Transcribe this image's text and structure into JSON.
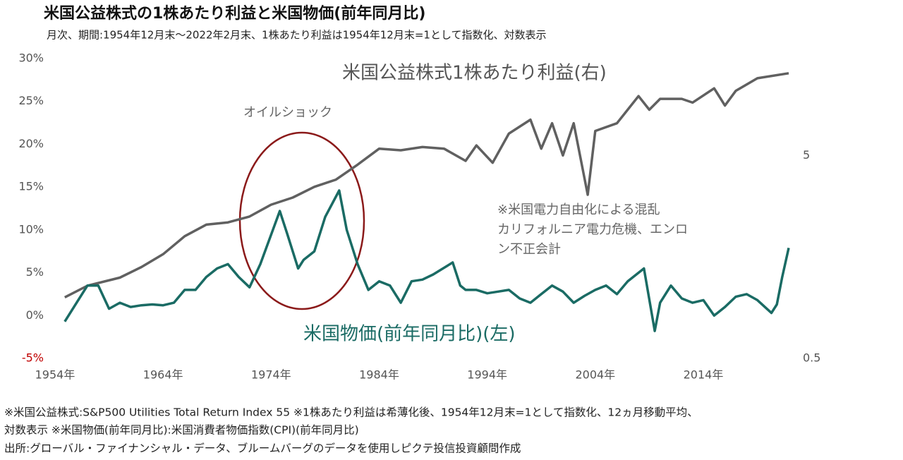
{
  "chart_data": {
    "type": "line",
    "title": "米国公益株式の1株あたり利益と米国物価(前年同月比)",
    "subtitle": "月次、期間:1954年12月末〜2022年2月末、1株あたり利益は1954年12月末=1として指数化、対数表示",
    "xlim": [
      1954,
      2021.9
    ],
    "xticks": [
      {
        "value": 1954,
        "label": "1954年"
      },
      {
        "value": 1964,
        "label": "1964年"
      },
      {
        "value": 1974,
        "label": "1974年"
      },
      {
        "value": 1984,
        "label": "1984年"
      },
      {
        "value": 1994,
        "label": "1994年"
      },
      {
        "value": 2004,
        "label": "2004年"
      },
      {
        "value": 2014,
        "label": "2014年"
      }
    ],
    "ylim": [
      -5,
      30
    ],
    "yticks": [
      {
        "value": -5,
        "label": "-5%"
      },
      {
        "value": 0,
        "label": "0%"
      },
      {
        "value": 5,
        "label": "5%"
      },
      {
        "value": 10,
        "label": "10%"
      },
      {
        "value": 15,
        "label": "15%"
      },
      {
        "value": 20,
        "label": "20%"
      },
      {
        "value": 25,
        "label": "25%"
      },
      {
        "value": 30,
        "label": "30%"
      }
    ],
    "negative_tick_color": "#c00000",
    "y2lim": [
      0.5,
      15
    ],
    "y2ticks": [
      0.5,
      5
    ],
    "y2log": true,
    "series": [
      {
        "name": "米国公益株式1株あたり利益(右)",
        "color": "#606060",
        "axis": "y2",
        "x": [
          1954.9,
          1957,
          1960,
          1962,
          1964,
          1966,
          1968,
          1970,
          1972,
          1974,
          1976,
          1978,
          1980,
          1982,
          1984,
          1986,
          1988,
          1990,
          1992,
          1993,
          1994.5,
          1996,
          1998,
          1999,
          2000,
          2001,
          2002,
          2003.3,
          2004,
          2006,
          2008,
          2009,
          2010,
          2012,
          2013,
          2015,
          2016,
          2017,
          2019,
          2021.9
        ],
        "values": [
          1.0,
          1.14,
          1.25,
          1.41,
          1.63,
          2.0,
          2.28,
          2.34,
          2.5,
          2.86,
          3.1,
          3.5,
          3.8,
          4.5,
          5.4,
          5.3,
          5.5,
          5.4,
          4.7,
          5.6,
          4.6,
          6.4,
          7.5,
          5.4,
          7.2,
          5.0,
          7.2,
          3.2,
          6.6,
          7.2,
          9.8,
          8.4,
          9.5,
          9.5,
          9.1,
          10.7,
          8.8,
          10.4,
          12.0,
          12.7
        ]
      },
      {
        "name": "米国物価(前年同月比)(左)",
        "color": "#1a6b64",
        "axis": "y",
        "x": [
          1954.9,
          1956,
          1957,
          1958,
          1959,
          1960,
          1961,
          1962,
          1963,
          1964,
          1965,
          1966,
          1967,
          1968,
          1969,
          1970,
          1971,
          1972,
          1973,
          1974.8,
          1975.5,
          1976.5,
          1977,
          1978,
          1979,
          1980.3,
          1981,
          1982,
          1983,
          1984,
          1985,
          1986,
          1987,
          1988,
          1989,
          1990.8,
          1991.5,
          1992,
          1993,
          1994,
          1995,
          1996,
          1997,
          1998,
          1999,
          2000,
          2001,
          2002,
          2003,
          2004,
          2005,
          2006,
          2007,
          2008.5,
          2009.5,
          2010,
          2011,
          2012,
          2013,
          2014,
          2015,
          2016,
          2017,
          2018,
          2019,
          2020.3,
          2020.8,
          2021.3,
          2021.9
        ],
        "values": [
          -0.7,
          1.5,
          3.5,
          3.5,
          0.8,
          1.5,
          1.0,
          1.2,
          1.3,
          1.2,
          1.5,
          3.0,
          3.0,
          4.5,
          5.5,
          6.0,
          4.5,
          3.3,
          6.0,
          12.2,
          9.5,
          5.5,
          6.5,
          7.5,
          11.5,
          14.6,
          10.0,
          6.0,
          3.0,
          4.0,
          3.5,
          1.5,
          4.0,
          4.2,
          4.8,
          6.2,
          3.5,
          3.0,
          3.0,
          2.6,
          2.8,
          3.0,
          2.0,
          1.5,
          2.5,
          3.5,
          2.8,
          1.5,
          2.3,
          3.0,
          3.5,
          2.5,
          4.0,
          5.5,
          -1.8,
          1.5,
          3.5,
          2.0,
          1.5,
          1.8,
          0.0,
          1.0,
          2.2,
          2.5,
          1.8,
          0.3,
          1.3,
          4.5,
          7.9
        ]
      }
    ],
    "annotations": {
      "oil": "オイルショック",
      "power": [
        "※米国電力自由化による混乱",
        "カリフォルニア電力危機、エンロ",
        "ン不正会計"
      ]
    },
    "footnotes": [
      "※米国公益株式:S&P500 Utilities Total Return Index 55 ※1株あたり利益は希薄化後、1954年12月末=1として指数化、12ヵ月移動平均、",
      "対数表示 ※米国物価(前年同月比):米国消費者物価指数(CPI)(前年同月比)",
      "出所:グローバル・ファイナンシャル・データ、ブルームバーグのデータを使用しピクテ投信投資顧問作成"
    ]
  }
}
